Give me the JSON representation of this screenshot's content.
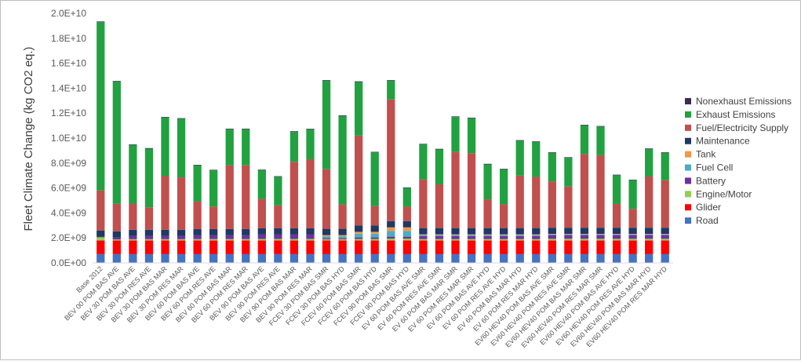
{
  "chart_data": {
    "type": "bar",
    "stacked": true,
    "title": "",
    "xlabel": "",
    "ylabel": "Fleet Climate Change (kg CO2 eq.)",
    "ylim": [
      0,
      20000000000
    ],
    "yticks": [
      0,
      2000000000,
      4000000000,
      6000000000,
      8000000000,
      10000000000,
      12000000000,
      14000000000,
      16000000000,
      18000000000,
      20000000000
    ],
    "ytick_labels": [
      "0.0E+00",
      "2.0E+09",
      "4.0E+09",
      "6.0E+09",
      "8.0E+09",
      "1.0E+10",
      "1.2E+10",
      "1.4E+10",
      "1.6E+10",
      "1.8E+10",
      "2.0E+10"
    ],
    "grid": false,
    "legend_position": "right",
    "categories": [
      "Base 2012",
      "BEV 00 POM BAS AVE",
      "BEV 30 POM BAS AVE",
      "BEV 30 POM RES AVE",
      "BEV 30 POM BAS MAR",
      "BEV 30 POM RES MAR",
      "BEV 60 POM BAS AVE",
      "BEV 60 POM RES AVE",
      "BEV 60 POM BAS MAR",
      "BEV 60 POM RES MAR",
      "BEV 90 POM BAS AVE",
      "BEV 90 POM RES AVE",
      "BEV 90 POM BAS MAR",
      "BEV 90 POM RES MAR",
      "FCEV 30 POM BAS SMR",
      "FCEV 30 POM BAS HYD",
      "FCEV 60 POM BAS SMR",
      "FCEV 60 POM BAS HYD",
      "FCEV 90 POM BAS SMR",
      "FCEV 90 POM BAS HYD",
      "EV 60 POM BAS AVE SMR",
      "EV 60 POM RES AVE SMR",
      "EV 60 POM BAS MAR SMR",
      "EV 60 POM RES MAR SMR",
      "EV 60 POM BAS AVE HYD",
      "EV 60 POM RES AVE HYD",
      "EV 60 POM BAS MAR HYD",
      "EV 60 POM RES MAR HYD",
      "EV60 HEV40 POM BAS AVE SMR",
      "EV60 HEV40 POM RES AVE SMR",
      "EV60 HEV40 POM BAS MAR SMR",
      "EV60 HEV40 POM RES MAR SMR",
      "EV60 HEV40 POM BAS AVE HYD",
      "EV60 HEV40 POM RES AVE HYD",
      "EV60 HEV40 POM BAS MAR HYD",
      "EV60 HEV40 POM RES MAR HYD"
    ],
    "series": [
      {
        "name": "Road",
        "color": "#4472c4",
        "values": [
          700000000,
          700000000,
          700000000,
          700000000,
          700000000,
          700000000,
          700000000,
          700000000,
          700000000,
          700000000,
          700000000,
          700000000,
          700000000,
          700000000,
          700000000,
          700000000,
          700000000,
          700000000,
          700000000,
          700000000,
          700000000,
          700000000,
          700000000,
          700000000,
          700000000,
          700000000,
          700000000,
          700000000,
          700000000,
          700000000,
          700000000,
          700000000,
          700000000,
          700000000,
          700000000,
          700000000
        ]
      },
      {
        "name": "Glider",
        "color": "#ff0000",
        "values": [
          1100000000,
          1100000000,
          1100000000,
          1100000000,
          1100000000,
          1100000000,
          1100000000,
          1100000000,
          1100000000,
          1100000000,
          1100000000,
          1100000000,
          1100000000,
          1100000000,
          1100000000,
          1100000000,
          1100000000,
          1100000000,
          1100000000,
          1100000000,
          1100000000,
          1100000000,
          1100000000,
          1100000000,
          1100000000,
          1100000000,
          1100000000,
          1100000000,
          1100000000,
          1100000000,
          1100000000,
          1100000000,
          1100000000,
          1100000000,
          1100000000,
          1100000000
        ]
      },
      {
        "name": "Engine/Motor",
        "color": "#92d050",
        "values": [
          250000000,
          80000000,
          100000000,
          100000000,
          100000000,
          100000000,
          110000000,
          110000000,
          110000000,
          110000000,
          120000000,
          120000000,
          120000000,
          120000000,
          100000000,
          100000000,
          120000000,
          120000000,
          150000000,
          150000000,
          110000000,
          110000000,
          110000000,
          110000000,
          110000000,
          110000000,
          110000000,
          110000000,
          130000000,
          130000000,
          130000000,
          130000000,
          130000000,
          130000000,
          130000000,
          130000000
        ]
      },
      {
        "name": "Battery",
        "color": "#7030a0",
        "values": [
          50000000,
          150000000,
          250000000,
          250000000,
          250000000,
          250000000,
          300000000,
          300000000,
          300000000,
          300000000,
          350000000,
          350000000,
          350000000,
          350000000,
          80000000,
          80000000,
          120000000,
          120000000,
          150000000,
          150000000,
          250000000,
          250000000,
          250000000,
          250000000,
          250000000,
          250000000,
          250000000,
          250000000,
          300000000,
          300000000,
          300000000,
          300000000,
          300000000,
          300000000,
          300000000,
          300000000
        ]
      },
      {
        "name": "Fuel Cell",
        "color": "#4bacc6",
        "values": [
          0,
          0,
          0,
          0,
          0,
          0,
          0,
          0,
          0,
          0,
          0,
          0,
          0,
          0,
          150000000,
          150000000,
          300000000,
          300000000,
          450000000,
          450000000,
          80000000,
          80000000,
          80000000,
          80000000,
          80000000,
          80000000,
          80000000,
          80000000,
          50000000,
          50000000,
          50000000,
          50000000,
          50000000,
          50000000,
          50000000,
          50000000
        ]
      },
      {
        "name": "Tank",
        "color": "#f79646",
        "values": [
          0,
          0,
          0,
          0,
          0,
          0,
          0,
          0,
          0,
          0,
          0,
          0,
          0,
          0,
          100000000,
          100000000,
          150000000,
          150000000,
          300000000,
          300000000,
          50000000,
          50000000,
          50000000,
          50000000,
          50000000,
          50000000,
          50000000,
          50000000,
          40000000,
          40000000,
          40000000,
          40000000,
          40000000,
          40000000,
          40000000,
          40000000
        ]
      },
      {
        "name": "Maintenance",
        "color": "#1f3864",
        "values": [
          500000000,
          500000000,
          500000000,
          500000000,
          500000000,
          500000000,
          500000000,
          500000000,
          500000000,
          500000000,
          500000000,
          500000000,
          500000000,
          500000000,
          500000000,
          500000000,
          500000000,
          500000000,
          500000000,
          500000000,
          500000000,
          500000000,
          500000000,
          500000000,
          500000000,
          500000000,
          500000000,
          500000000,
          500000000,
          500000000,
          500000000,
          500000000,
          500000000,
          500000000,
          500000000,
          500000000
        ]
      },
      {
        "name": "Fuel/Electricity Supply",
        "color": "#c0504d",
        "values": [
          3200000000,
          2200000000,
          2100000000,
          1800000000,
          4300000000,
          4200000000,
          2200000000,
          1800000000,
          5100000000,
          5100000000,
          2350000000,
          1830000000,
          5330000000,
          5530000000,
          4770000000,
          1950000000,
          7210000000,
          1560000000,
          9750000000,
          1150000000,
          3900000000,
          3500000000,
          6100000000,
          6000000000,
          2300000000,
          1900000000,
          4200000000,
          4100000000,
          3700000000,
          3300000000,
          5900000000,
          5800000000,
          1900000000,
          1500000000,
          4100000000,
          3800000000
        ]
      },
      {
        "name": "Exhaust Emissions",
        "color": "#22a141",
        "values": [
          13500000000,
          9800000000,
          4700000000,
          4700000000,
          4700000000,
          4700000000,
          2900000000,
          2900000000,
          2900000000,
          2900000000,
          2300000000,
          2300000000,
          2400000000,
          2400000000,
          7100000000,
          7100000000,
          4300000000,
          4300000000,
          1500000000,
          1500000000,
          2800000000,
          2800000000,
          2800000000,
          2800000000,
          2800000000,
          2800000000,
          2800000000,
          2800000000,
          2300000000,
          2300000000,
          2300000000,
          2300000000,
          2300000000,
          2300000000,
          2200000000,
          2200000000
        ]
      },
      {
        "name": "Nonexhaust Emissions",
        "color": "#3a2c55",
        "values": [
          50000000,
          50000000,
          50000000,
          50000000,
          50000000,
          50000000,
          50000000,
          50000000,
          50000000,
          50000000,
          50000000,
          50000000,
          50000000,
          50000000,
          50000000,
          50000000,
          50000000,
          50000000,
          50000000,
          50000000,
          50000000,
          50000000,
          50000000,
          50000000,
          50000000,
          50000000,
          50000000,
          50000000,
          50000000,
          50000000,
          50000000,
          50000000,
          50000000,
          50000000,
          50000000,
          50000000
        ]
      }
    ]
  }
}
